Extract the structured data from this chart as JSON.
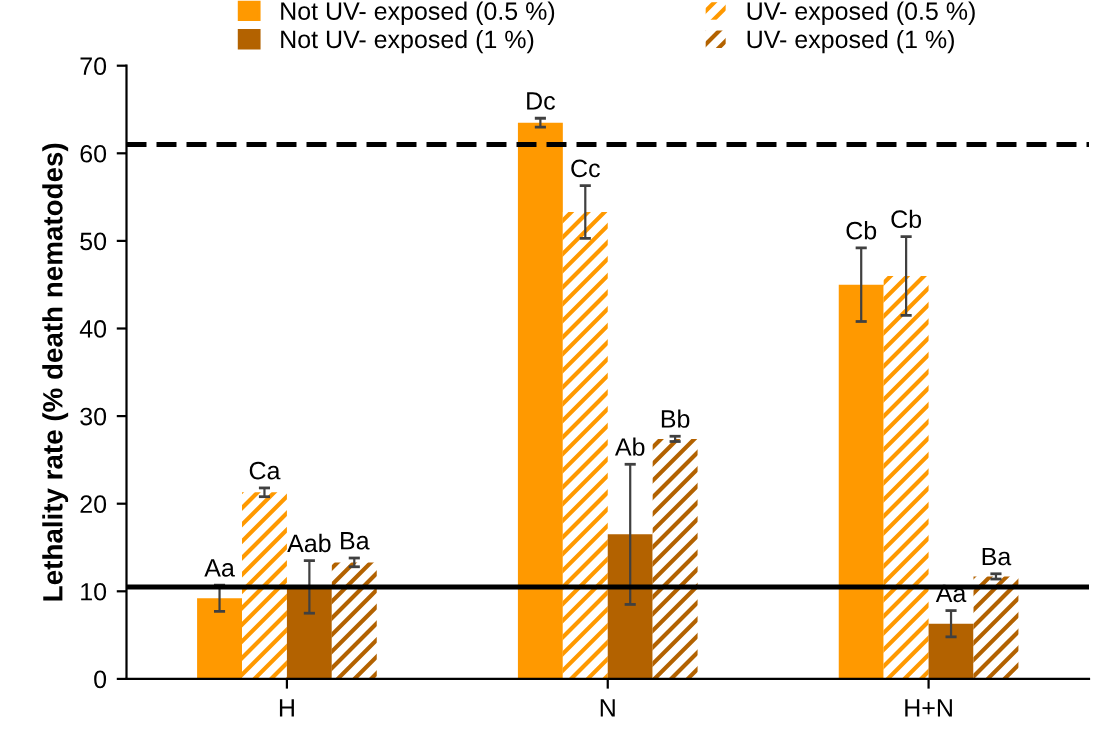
{
  "chart_data": {
    "type": "bar",
    "ylabel": "Lethality rate (% death nematodes)",
    "categories": [
      "H",
      "N",
      "H+N"
    ],
    "series": [
      {
        "name": "Not UV- exposed (0.5 %)",
        "color": "#ff9900",
        "values": [
          9.2,
          63.5,
          45.0
        ],
        "errors": [
          1.5,
          0.5,
          4.2
        ],
        "value_labels": [
          "Aa",
          "Dc",
          "Cb"
        ]
      },
      {
        "name": "UV- exposed (0.5 %)",
        "color": "#ff9900",
        "values": [
          21.3,
          53.3,
          46.0
        ],
        "errors": [
          0.5,
          3.0,
          4.5
        ],
        "value_labels": [
          "Ca",
          "Cc",
          "Cb"
        ]
      },
      {
        "name": "Not UV- exposed (1 %)",
        "color": "#b36200",
        "values": [
          10.5,
          16.5,
          6.3
        ],
        "errors": [
          3.0,
          8.0,
          1.5
        ],
        "value_labels": [
          "Aab",
          "Ab",
          "Aa"
        ]
      },
      {
        "name": "UV- exposed (1 %)",
        "color": "#b36200",
        "values": [
          13.3,
          27.4,
          11.7
        ],
        "errors": [
          0.5,
          0.3,
          0.3
        ],
        "value_labels": [
          "Ba",
          "Bb",
          "Ba"
        ]
      }
    ],
    "ylim": [
      0,
      70
    ],
    "yticks": [
      0,
      10,
      20,
      30,
      40,
      50,
      60,
      70
    ],
    "ref_lines": [
      {
        "axis": "y",
        "value": 10.5,
        "color": "#000000",
        "line_style": "solid"
      },
      {
        "axis": "y",
        "value": 61,
        "color": "#000000",
        "line_style": "dashed"
      }
    ],
    "legend": "top",
    "grid": false
  }
}
